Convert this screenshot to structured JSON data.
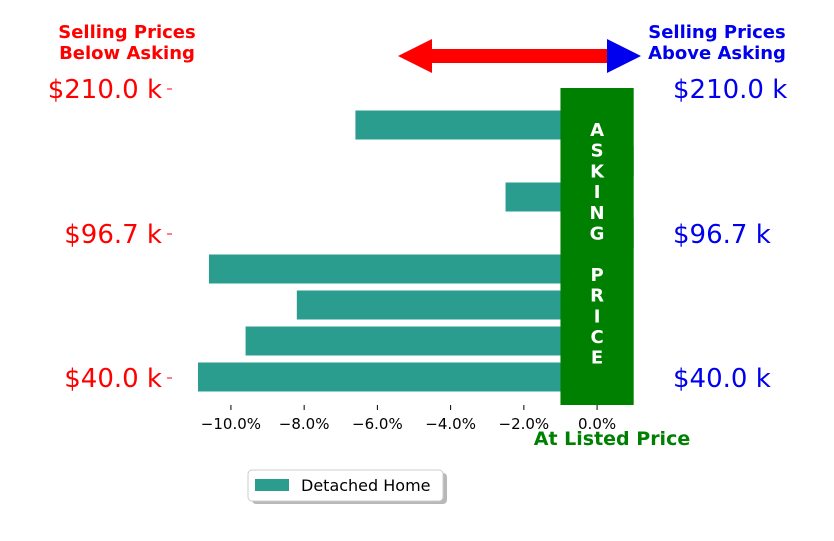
{
  "chart_data": {
    "type": "bar",
    "orientation": "horizontal",
    "series": [
      {
        "name": "Detached Home",
        "color": "#2a9d8f",
        "values": [
          -10.9,
          -9.6,
          -8.2,
          -10.6,
          1.0,
          -2.5,
          1.0,
          -6.6
        ]
      }
    ],
    "xlim": [
      -11.5,
      1.5
    ],
    "xticks": [
      -10,
      -8,
      -6,
      -4,
      -2,
      0
    ],
    "xtick_labels": [
      "−10.0%",
      "−8.0%",
      "−6.0%",
      "−4.0%",
      "−2.0%",
      "0.0%"
    ],
    "left_price_labels": [
      "$210.0 k",
      "$96.7 k",
      "$40.0 k"
    ],
    "right_price_labels": [
      "$210.0 k",
      "$96.7 k",
      "$40.0 k"
    ],
    "below_label": "Selling Prices\nBelow Asking",
    "above_label": "Selling Prices\nAbove Asking",
    "asking_price_text": "ASKING PRICE",
    "at_listed_label": "At Listed Price",
    "legend_label": "Detached Home",
    "legend_position": "bottom-center",
    "colors": {
      "below": "#ff0000",
      "above": "#0000ee",
      "asking": "#008000",
      "bar": "#2a9d8f"
    }
  }
}
